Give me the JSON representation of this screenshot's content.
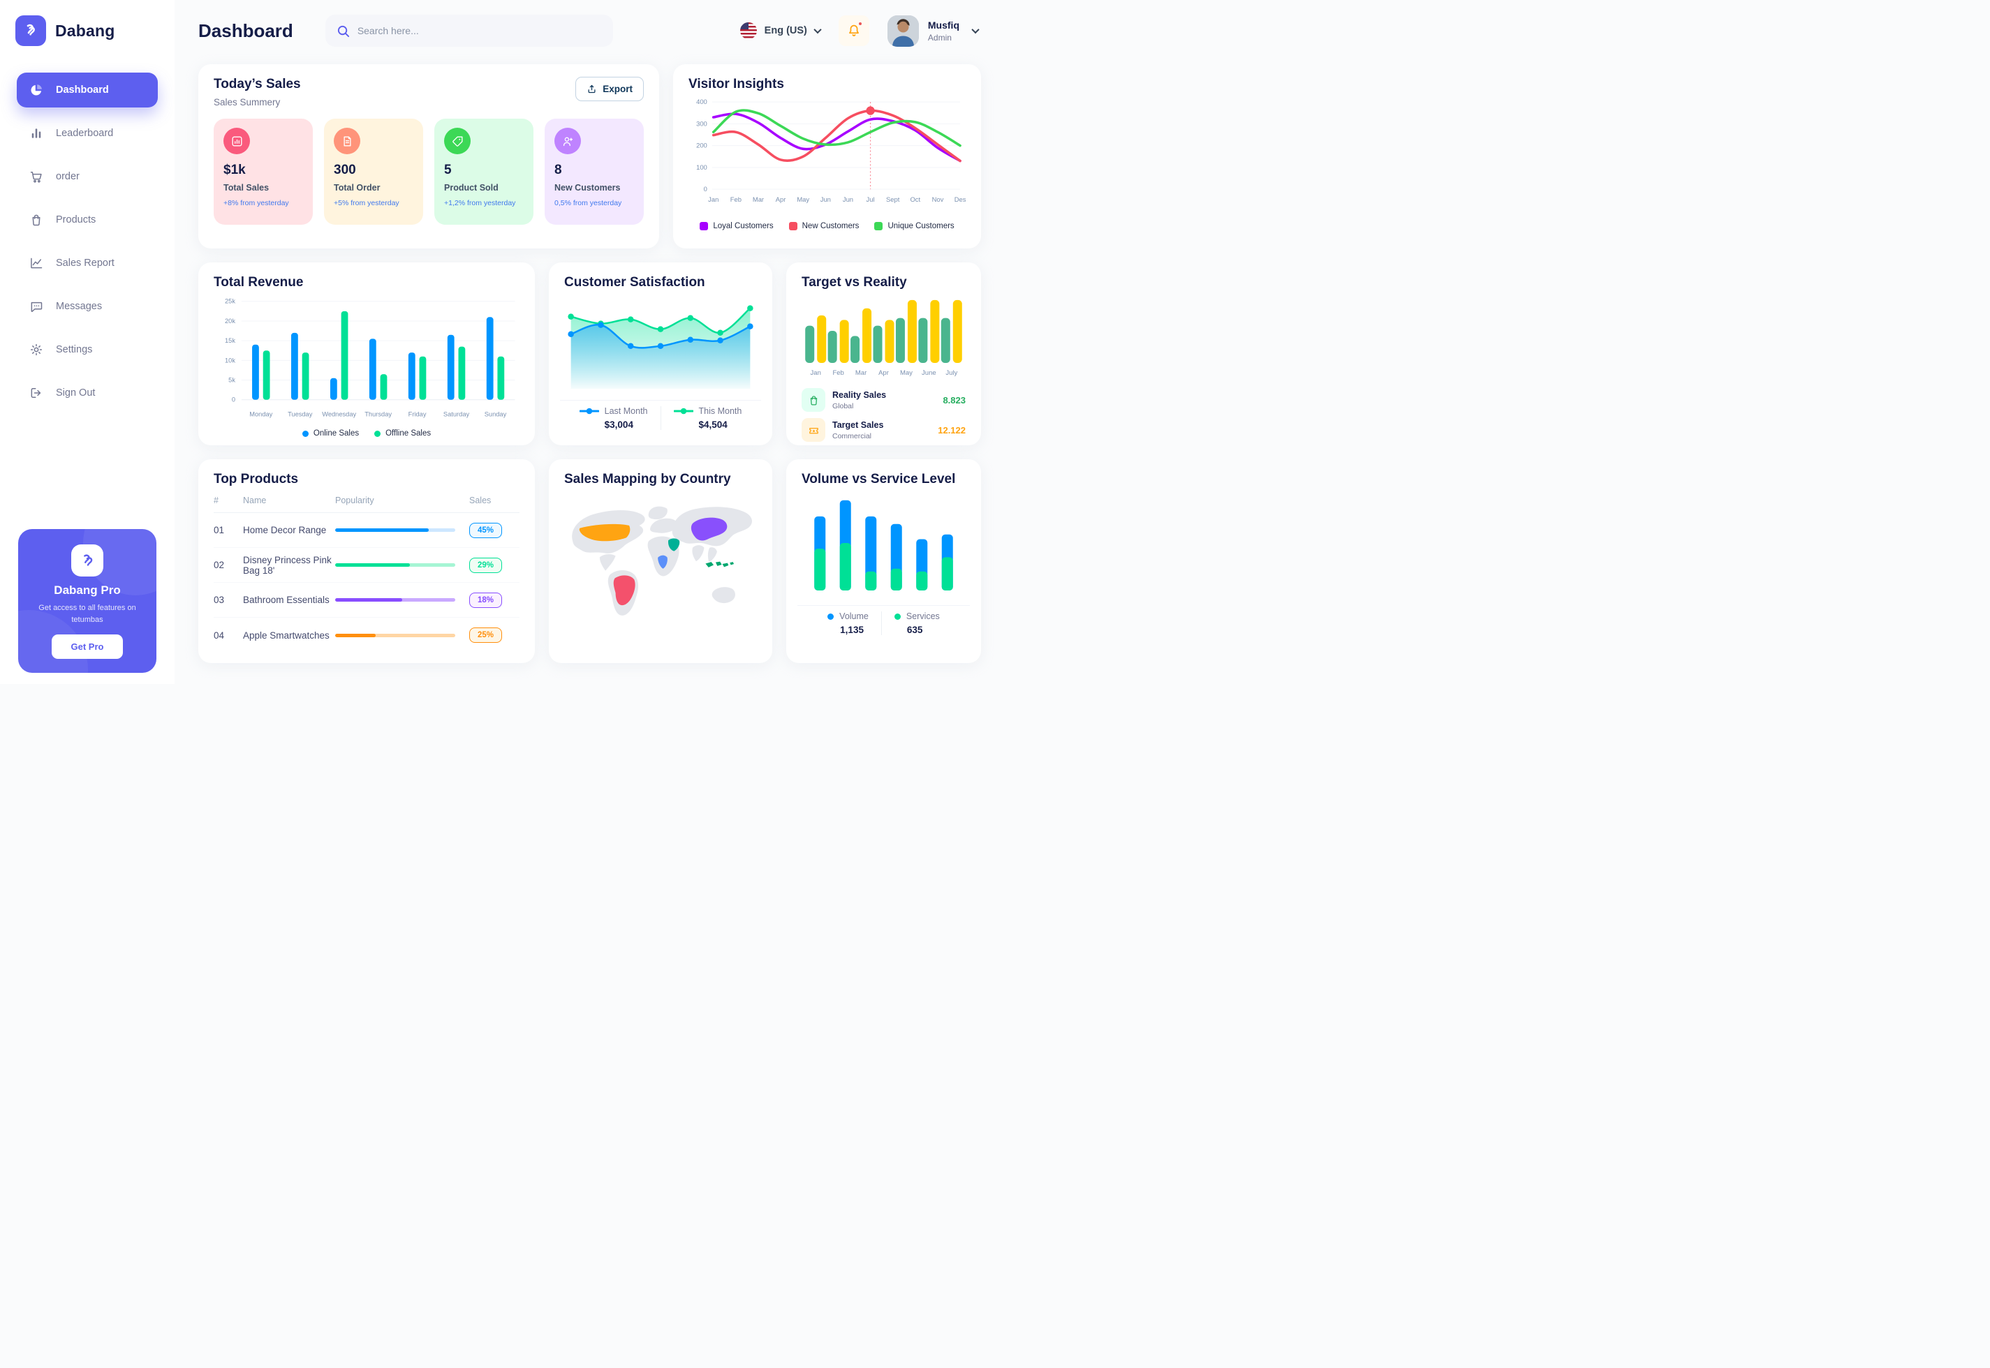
{
  "app": {
    "brand": "Dabang",
    "accent_color": "#5D5FEF"
  },
  "sidebar": {
    "items": [
      {
        "label": "Dashboard",
        "icon": "pie-chart-icon",
        "active": true
      },
      {
        "label": "Leaderboard",
        "icon": "bar-chart-icon",
        "active": false
      },
      {
        "label": "order",
        "icon": "cart-icon",
        "active": false
      },
      {
        "label": "Products",
        "icon": "bag-icon",
        "active": false
      },
      {
        "label": "Sales Report",
        "icon": "line-chart-icon",
        "active": false
      },
      {
        "label": "Messages",
        "icon": "message-icon",
        "active": false
      },
      {
        "label": "Settings",
        "icon": "gear-icon",
        "active": false
      },
      {
        "label": "Sign Out",
        "icon": "sign-out-icon",
        "active": false
      }
    ],
    "pro_card": {
      "title": "Dabang Pro",
      "subtitle": "Get access to all features on tetumbas",
      "button_label": "Get Pro"
    }
  },
  "header": {
    "title": "Dashboard",
    "search_placeholder": "Search here...",
    "language": "Eng (US)",
    "user": {
      "name": "Musfiq",
      "role": "Admin"
    }
  },
  "todays_sales": {
    "title": "Today’s Sales",
    "subtitle": "Sales Summery",
    "export_label": "Export",
    "stats": [
      {
        "value": "$1k",
        "label": "Total Sales",
        "delta": "+8% from yesterday",
        "bg": "#FFE2E5",
        "icon_bg": "#FA5A7D",
        "icon": "mini-bar-chart-icon"
      },
      {
        "value": "300",
        "label": "Total Order",
        "delta": "+5% from yesterday",
        "bg": "#FFF4DE",
        "icon_bg": "#FF947A",
        "icon": "order-doc-icon"
      },
      {
        "value": "5",
        "label": "Product Sold",
        "delta": "+1,2% from yesterday",
        "bg": "#DCFCE7",
        "icon_bg": "#3CD856",
        "icon": "tag-icon"
      },
      {
        "value": "8",
        "label": "New Customers",
        "delta": "0,5% from yesterday",
        "bg": "#F3E8FF",
        "icon_bg": "#BF83FF",
        "icon": "user-plus-icon"
      }
    ]
  },
  "top_products": {
    "title": "Top Products",
    "columns": [
      "#",
      "Name",
      "Popularity",
      "Sales"
    ],
    "rows": [
      {
        "num": "01",
        "name": "Home Decor Range",
        "popularity": 78,
        "sales": "45%",
        "color": "#0095FF",
        "track": "#CDE7FF",
        "badge_bg": "#F0F9FF"
      },
      {
        "num": "02",
        "name": "Disney Princess Pink Bag 18'",
        "popularity": 62,
        "sales": "29%",
        "color": "#00E096",
        "track": "#A6F5D4",
        "badge_bg": "#F0FDF4"
      },
      {
        "num": "03",
        "name": "Bathroom Essentials",
        "popularity": 56,
        "sales": "18%",
        "color": "#884DFF",
        "track": "#C9A9FF",
        "badge_bg": "#FBF1FF"
      },
      {
        "num": "04",
        "name": "Apple Smartwatches",
        "popularity": 34,
        "sales": "25%",
        "color": "#FF8F0D",
        "track": "#FFD6A4",
        "badge_bg": "#FEF6E6"
      }
    ]
  },
  "sales_map": {
    "title": "Sales Mapping by Country",
    "countries": [
      {
        "name": "United States",
        "color": "#FFA412"
      },
      {
        "name": "Brazil",
        "color": "#F4516C"
      },
      {
        "name": "Saudi Arabia",
        "color": "#00B096"
      },
      {
        "name": "DR Congo",
        "color": "#5B8FF9"
      },
      {
        "name": "China",
        "color": "#8950FC"
      },
      {
        "name": "Indonesia",
        "color": "#00A76F"
      }
    ]
  },
  "chart_data": [
    {
      "id": "visitor_insights",
      "type": "line",
      "title": "Visitor Insights",
      "x": [
        "Jan",
        "Feb",
        "Mar",
        "Apr",
        "May",
        "Jun",
        "Jun",
        "Jul",
        "Sept",
        "Oct",
        "Nov",
        "Des"
      ],
      "ylim": [
        0,
        400
      ],
      "yticks": [
        0,
        100,
        200,
        300,
        400
      ],
      "grid": true,
      "legend_position": "bottom",
      "series": [
        {
          "name": "Loyal Customers",
          "color": "#A700FF",
          "values": [
            330,
            345,
            305,
            235,
            185,
            205,
            265,
            320,
            312,
            270,
            190,
            130
          ]
        },
        {
          "name": "New Customers",
          "color": "#F64E60",
          "values": [
            248,
            262,
            205,
            135,
            150,
            235,
            325,
            360,
            338,
            280,
            205,
            130
          ]
        },
        {
          "name": "Unique Customers",
          "color": "#3CD856",
          "values": [
            262,
            355,
            348,
            290,
            232,
            205,
            215,
            262,
            305,
            308,
            262,
            200
          ]
        }
      ],
      "annotation": {
        "x_index": 7,
        "x_label": "Jul",
        "series": "New Customers",
        "value": 360,
        "style": "red-dashed-line-with-dot"
      }
    },
    {
      "id": "total_revenue",
      "type": "bar",
      "title": "Total Revenue",
      "categories": [
        "Monday",
        "Tuesday",
        "Wednesday",
        "Thursday",
        "Friday",
        "Saturday",
        "Sunday"
      ],
      "ylim": [
        0,
        25000
      ],
      "ytick_labels": [
        "0",
        "5k",
        "10k",
        "15k",
        "20k",
        "25k"
      ],
      "grid": true,
      "legend_position": "bottom",
      "series": [
        {
          "name": "Online Sales",
          "color": "#0095FF",
          "values": [
            14000,
            17000,
            5500,
            15500,
            12000,
            16500,
            21000
          ]
        },
        {
          "name": "Offline Sales",
          "color": "#00E096",
          "values": [
            12500,
            12000,
            22500,
            6500,
            11000,
            13500,
            11000
          ]
        }
      ]
    },
    {
      "id": "customer_satisfaction",
      "type": "area",
      "title": "Customer Satisfaction",
      "ylim": [
        0,
        100
      ],
      "grid": false,
      "legend_position": "bottom",
      "series": [
        {
          "name": "Last Month",
          "color": "#0095FF",
          "total_label": "$3,004",
          "values": [
            55,
            68,
            38,
            38,
            47,
            46,
            66
          ]
        },
        {
          "name": "This Month",
          "color": "#00E096",
          "total_label": "$4,504",
          "values": [
            80,
            70,
            76,
            62,
            78,
            57,
            92
          ]
        }
      ]
    },
    {
      "id": "target_vs_reality",
      "type": "bar",
      "title": "Target vs Reality",
      "categories": [
        "Jan",
        "Feb",
        "Mar",
        "Apr",
        "May",
        "June",
        "July"
      ],
      "ylim": [
        0,
        10
      ],
      "grid": false,
      "legend_position": "bottom-list",
      "series": [
        {
          "name": "Reality Sales",
          "subtitle": "Global",
          "color": "#4AB58E",
          "value_label": "8.823",
          "value_color": "#27AE60",
          "icon": "shopping-bag-icon",
          "icon_bg": "#E2FFF3",
          "values": [
            5.8,
            5.0,
            4.2,
            5.8,
            7.0,
            7.0,
            7.0
          ]
        },
        {
          "name": "Target Sales",
          "subtitle": "Commercial",
          "color": "#FFCF00",
          "value_label": "12.122",
          "value_color": "#FFA412",
          "icon": "ticket-icon",
          "icon_bg": "#FFF4DE",
          "values": [
            7.4,
            6.7,
            8.5,
            6.7,
            9.8,
            9.8,
            9.8
          ]
        }
      ]
    },
    {
      "id": "volume_vs_service",
      "type": "stacked-bar",
      "title": "Volume vs Service Level",
      "categories": [
        "1",
        "2",
        "3",
        "4",
        "5",
        "6"
      ],
      "ylim": [
        0,
        100
      ],
      "grid": false,
      "legend_position": "bottom",
      "series": [
        {
          "name": "Volume",
          "color": "#0095FF",
          "total_label": "1,135",
          "values": [
            34,
            45,
            58,
            47,
            34,
            24
          ]
        },
        {
          "name": "Services",
          "color": "#00E096",
          "total_label": "635",
          "values": [
            44,
            50,
            20,
            23,
            20,
            35
          ]
        }
      ]
    }
  ]
}
